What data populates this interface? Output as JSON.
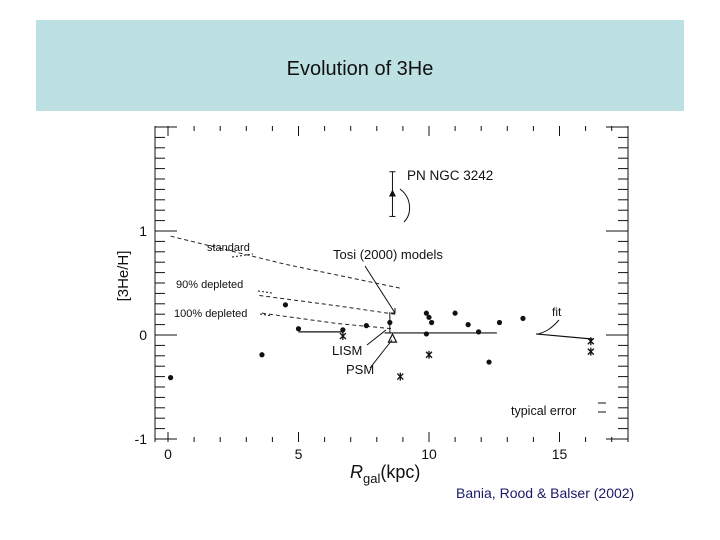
{
  "slide": {
    "title": "Evolution of 3He",
    "credit": "Bania, Rood & Balser (2002)"
  },
  "chart_data": {
    "type": "scatter",
    "title": "",
    "xlabel": "R_gal (kpc)",
    "xlabel_main": "R",
    "xlabel_sub": "gal",
    "xlabel_unit": "(kpc)",
    "ylabel": "[3He/H]",
    "xlim": [
      0,
      17.5
    ],
    "ylim": [
      -1,
      2
    ],
    "xticks": [
      0,
      5,
      10,
      15
    ],
    "xtick_labels": [
      "0",
      "5",
      "10",
      "15"
    ],
    "yticks": [
      -1,
      0,
      1
    ],
    "ytick_labels": [
      "-1",
      "0",
      "1"
    ],
    "grid": false,
    "series": [
      {
        "marker": "dot",
        "points": [
          {
            "x": 0.1,
            "y": -0.41
          },
          {
            "x": 3.6,
            "y": -0.19
          },
          {
            "x": 4.5,
            "y": 0.29
          },
          {
            "x": 5.0,
            "y": 0.06
          },
          {
            "x": 6.7,
            "y": 0.05
          },
          {
            "x": 7.6,
            "y": 0.09
          },
          {
            "x": 9.9,
            "y": 0.21
          },
          {
            "x": 10.0,
            "y": 0.17
          },
          {
            "x": 10.1,
            "y": 0.12
          },
          {
            "x": 11.0,
            "y": 0.21
          },
          {
            "x": 11.5,
            "y": 0.1
          },
          {
            "x": 11.9,
            "y": 0.03
          },
          {
            "x": 12.3,
            "y": -0.26
          },
          {
            "x": 12.7,
            "y": 0.12
          },
          {
            "x": 13.6,
            "y": 0.16
          },
          {
            "x": 9.9,
            "y": 0.01
          }
        ]
      },
      {
        "marker": "star",
        "points": [
          {
            "x": 6.7,
            "y": -0.01
          },
          {
            "x": 8.9,
            "y": -0.4
          },
          {
            "x": 10.0,
            "y": -0.19
          },
          {
            "x": 16.2,
            "y": -0.06
          },
          {
            "x": 16.2,
            "y": -0.16
          }
        ]
      },
      {
        "marker": "triangle",
        "points": [
          {
            "x": 8.6,
            "y": 1.36
          }
        ]
      }
    ],
    "special_points": [
      {
        "name": "LISM",
        "x": 8.5,
        "y": 0.12,
        "err": 0.1
      },
      {
        "name": "PSM",
        "x": 8.6,
        "y": -0.04
      }
    ],
    "fit_line": {
      "label": "fit",
      "segments": [
        [
          {
            "x": 5.0,
            "y": 0.03
          },
          {
            "x": 6.7,
            "y": 0.03
          }
        ],
        [
          {
            "x": 8.3,
            "y": 0.02
          },
          {
            "x": 12.6,
            "y": 0.02
          }
        ],
        [
          {
            "x": 14.1,
            "y": 0.01
          },
          {
            "x": 16.3,
            "y": -0.04
          }
        ]
      ]
    },
    "models": [
      {
        "label": "standard",
        "points": [
          {
            "x": 0.1,
            "y": 0.95
          },
          {
            "x": 4.5,
            "y": 0.68
          },
          {
            "x": 8.9,
            "y": 0.45
          }
        ]
      },
      {
        "label": "90% depleted",
        "points": [
          {
            "x": 3.5,
            "y": 0.38
          },
          {
            "x": 6.5,
            "y": 0.28
          },
          {
            "x": 8.7,
            "y": 0.2
          }
        ]
      },
      {
        "label": "100% depleted",
        "points": [
          {
            "x": 3.6,
            "y": 0.21
          },
          {
            "x": 6.5,
            "y": 0.11
          },
          {
            "x": 8.6,
            "y": 0.06
          }
        ]
      }
    ],
    "pn_errorbar": {
      "x": 8.6,
      "low": 1.14,
      "high": 1.57
    },
    "annotations": [
      {
        "text": "PN NGC 3242"
      },
      {
        "text": "Tosi (2000) models"
      },
      {
        "text": "standard"
      },
      {
        "text": "90% depleted"
      },
      {
        "text": "100% depleted"
      },
      {
        "text": "fit"
      },
      {
        "text": "LISM"
      },
      {
        "text": "PSM"
      },
      {
        "text": "typical error"
      }
    ]
  }
}
